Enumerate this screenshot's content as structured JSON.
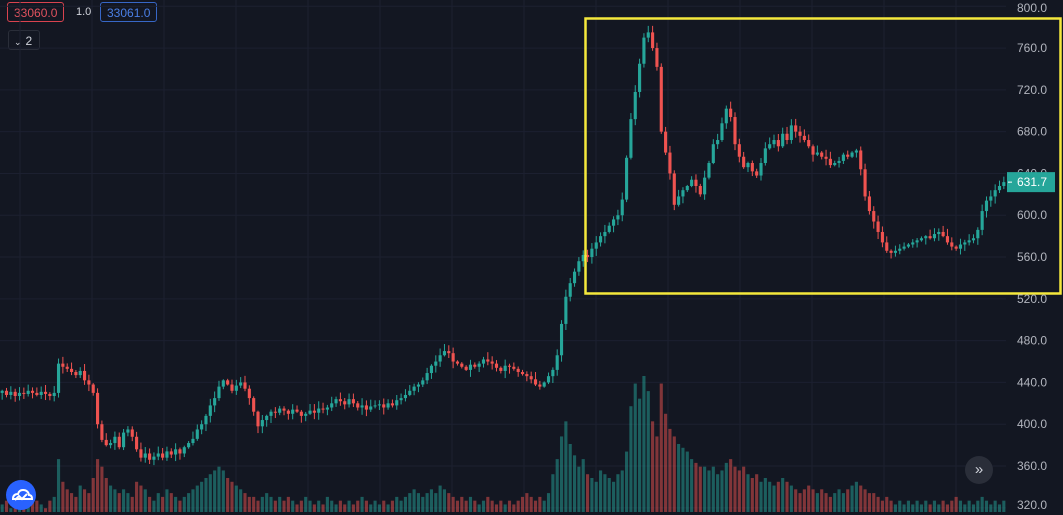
{
  "toolbar": {
    "sell_price": "33060.0",
    "spread": "1.0",
    "buy_price": "33061.0",
    "layers_count": "2"
  },
  "chart_data": {
    "type": "candlestick",
    "y_axis": {
      "ticks": [
        "320.0",
        "360.0",
        "400.0",
        "440.0",
        "480.0",
        "520.0",
        "560.0",
        "600.0",
        "640.0",
        "680.0",
        "720.0",
        "760.0",
        "800.0"
      ],
      "ylim": [
        316,
        806
      ]
    },
    "last_price": "631.7",
    "colors": {
      "up": "#26a69a",
      "down": "#ef5350",
      "highlight": "#f5e83c",
      "last_price_bg": "#26a69a"
    },
    "series": [
      {
        "name": "price",
        "close_path": [
          432,
          428,
          431,
          427,
          430,
          429,
          432,
          430,
          428,
          431,
          429,
          427,
          430,
          458,
          455,
          453,
          450,
          447,
          451,
          442,
          438,
          430,
          400,
          385,
          380,
          382,
          388,
          378,
          392,
          395,
          388,
          376,
          368,
          372,
          366,
          369,
          372,
          368,
          374,
          371,
          376,
          372,
          378,
          382,
          386,
          395,
          400,
          408,
          418,
          425,
          436,
          442,
          438,
          432,
          437,
          440,
          434,
          425,
          412,
          398,
          404,
          408,
          412,
          411,
          415,
          413,
          410,
          414,
          412,
          408,
          410,
          413,
          411,
          415,
          414,
          416,
          420,
          424,
          422,
          419,
          424,
          420,
          416,
          418,
          414,
          417,
          418,
          419,
          416,
          420,
          418,
          423,
          425,
          428,
          432,
          436,
          438,
          442,
          449,
          456,
          460,
          466,
          470,
          468,
          460,
          458,
          455,
          452,
          457,
          455,
          458,
          462,
          460,
          458,
          454,
          451,
          456,
          455,
          453,
          450,
          448,
          446,
          443,
          438,
          436,
          440,
          446,
          452,
          466,
          496,
          522,
          535,
          546,
          556,
          562,
          560,
          568,
          574,
          580,
          584,
          590,
          596,
          600,
          615,
          655,
          692,
          718,
          745,
          770,
          775,
          760,
          742,
          680,
          660,
          640,
          610,
          618,
          624,
          628,
          634,
          628,
          620,
          636,
          650,
          668,
          672,
          688,
          702,
          694,
          668,
          656,
          646,
          650,
          642,
          638,
          650,
          664,
          668,
          672,
          666,
          678,
          672,
          686,
          680,
          676,
          672,
          666,
          658,
          660,
          656,
          654,
          648,
          650,
          652,
          658,
          656,
          660,
          662,
          644,
          618,
          604,
          594,
          584,
          574,
          566,
          564,
          566,
          568,
          570,
          572,
          574,
          576,
          578,
          580,
          578,
          582,
          584,
          580,
          574,
          570,
          568,
          572,
          574,
          576,
          578,
          586,
          604,
          614,
          618,
          624,
          628,
          631.7
        ]
      },
      {
        "name": "volume",
        "values": [
          2,
          3,
          1,
          4,
          2,
          3,
          2,
          5,
          3,
          2,
          1,
          3,
          4,
          14,
          8,
          6,
          5,
          4,
          7,
          6,
          5,
          9,
          14,
          12,
          9,
          7,
          6,
          5,
          6,
          5,
          4,
          8,
          7,
          6,
          4,
          3,
          5,
          4,
          6,
          5,
          4,
          3,
          4,
          5,
          6,
          7,
          8,
          9,
          10,
          11,
          12,
          11,
          9,
          8,
          7,
          6,
          5,
          4,
          4,
          3,
          4,
          5,
          4,
          3,
          4,
          3,
          4,
          3,
          2,
          3,
          4,
          3,
          2,
          3,
          2,
          4,
          3,
          2,
          3,
          2,
          3,
          2,
          3,
          4,
          3,
          2,
          3,
          2,
          3,
          2,
          3,
          4,
          3,
          4,
          5,
          6,
          5,
          4,
          5,
          6,
          5,
          7,
          6,
          5,
          4,
          3,
          4,
          3,
          4,
          3,
          2,
          3,
          4,
          3,
          2,
          3,
          2,
          3,
          2,
          3,
          4,
          5,
          4,
          3,
          4,
          3,
          5,
          10,
          14,
          20,
          24,
          18,
          15,
          12,
          14,
          10,
          9,
          8,
          11,
          10,
          9,
          8,
          10,
          11,
          16,
          28,
          34,
          30,
          36,
          32,
          24,
          20,
          34,
          26,
          22,
          20,
          18,
          17,
          16,
          14,
          13,
          12,
          12,
          11,
          12,
          10,
          11,
          13,
          14,
          12,
          11,
          12,
          10,
          9,
          10,
          8,
          9,
          8,
          7,
          8,
          9,
          8,
          7,
          6,
          5,
          6,
          7,
          6,
          5,
          6,
          5,
          4,
          5,
          6,
          5,
          6,
          7,
          8,
          7,
          6,
          5,
          5,
          4,
          3,
          4,
          3,
          2,
          3,
          2,
          3,
          2,
          3,
          2,
          3,
          2,
          3,
          2,
          3,
          2,
          3,
          4,
          3,
          2,
          3,
          2,
          3,
          4,
          3,
          2,
          3,
          2,
          3
        ]
      }
    ]
  }
}
